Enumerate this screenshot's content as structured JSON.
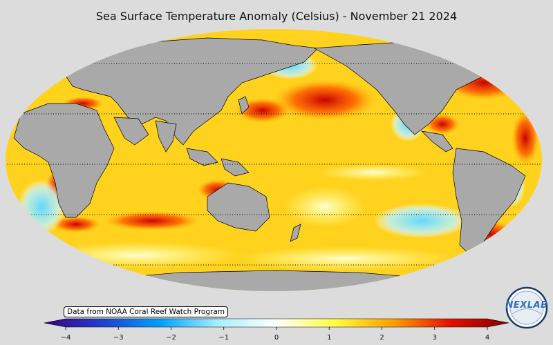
{
  "title": "Sea Surface Temperature Anomaly (Celsius) - November 21 2024",
  "credit": "Data from NOAA Coral Reef Watch Program",
  "colorbar": {
    "ticks": [
      "−4",
      "−3",
      "−2",
      "−1",
      "0",
      "1",
      "2",
      "3",
      "4"
    ],
    "range": [
      -4,
      4
    ],
    "stops": [
      "#3a007a",
      "#2040d0",
      "#00a0ff",
      "#a8f0ff",
      "#ffffff",
      "#ffff40",
      "#ffa000",
      "#e01000",
      "#800000"
    ]
  },
  "logo": {
    "text": "NEXLAB"
  },
  "colors": {
    "background": "#dcdcdc",
    "land": "#a9a9a9"
  }
}
